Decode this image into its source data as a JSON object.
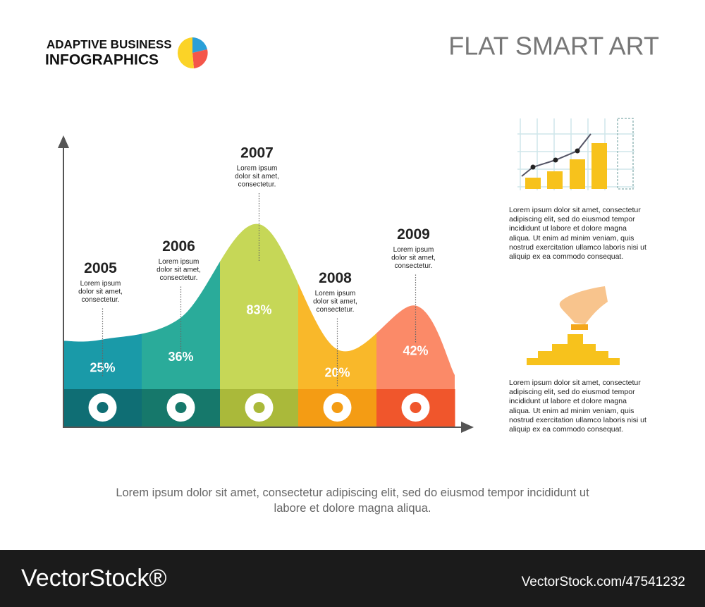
{
  "header": {
    "brand_line1": "ADAPTIVE BUSINESS",
    "brand_line2": "INFOGRAPHICS",
    "title": "FLAT SMART ART"
  },
  "chart_data": {
    "type": "area-columns",
    "categories": [
      "2005",
      "2006",
      "2007",
      "2008",
      "2009"
    ],
    "values": [
      25,
      36,
      83,
      20,
      42
    ],
    "value_labels": [
      "25%",
      "36%",
      "83%",
      "20%",
      "42%"
    ],
    "descriptions": [
      [
        "Lorem ipsum",
        "dolor sit amet,",
        "consectetur."
      ],
      [
        "Lorem ipsum",
        "dolor sit amet,",
        "consectetur."
      ],
      [
        "Lorem ipsum",
        "dolor sit amet,",
        "consectetur."
      ],
      [
        "Lorem ipsum",
        "dolor sit amet,",
        "consectetur."
      ],
      [
        "Lorem ipsum",
        "dolor sit amet,",
        "consectetur."
      ]
    ],
    "colors": [
      "#1a9aa8",
      "#2aab9a",
      "#c6d757",
      "#f9b82a",
      "#fb8a68"
    ],
    "band_colors": [
      "#0f6e74",
      "#16786b",
      "#aab93a",
      "#f49c14",
      "#f0562c"
    ]
  },
  "side_notes": [
    "Lorem ipsum dolor sit amet, consectetur adipiscing elit, sed do eiusmod tempor incididunt ut labore et dolore magna aliqua. Ut enim ad minim veniam, quis nostrud exercitation ullamco laboris nisi ut aliquip ex ea commodo consequat.",
    "Lorem ipsum dolor sit amet, consectetur adipiscing elit, sed do eiusmod tempor incididunt ut labore et dolore magna aliqua. Ut enim ad minim veniam, quis nostrud exercitation ullamco laboris nisi ut aliquip ex ea commodo consequat."
  ],
  "footer_text": "Lorem ipsum dolor sit amet, consectetur adipiscing elit, sed do eiusmod tempor incididunt ut labore et dolore magna aliqua.",
  "watermark": {
    "brand": "VectorStock®",
    "id": "VectorStock.com/47541232"
  }
}
